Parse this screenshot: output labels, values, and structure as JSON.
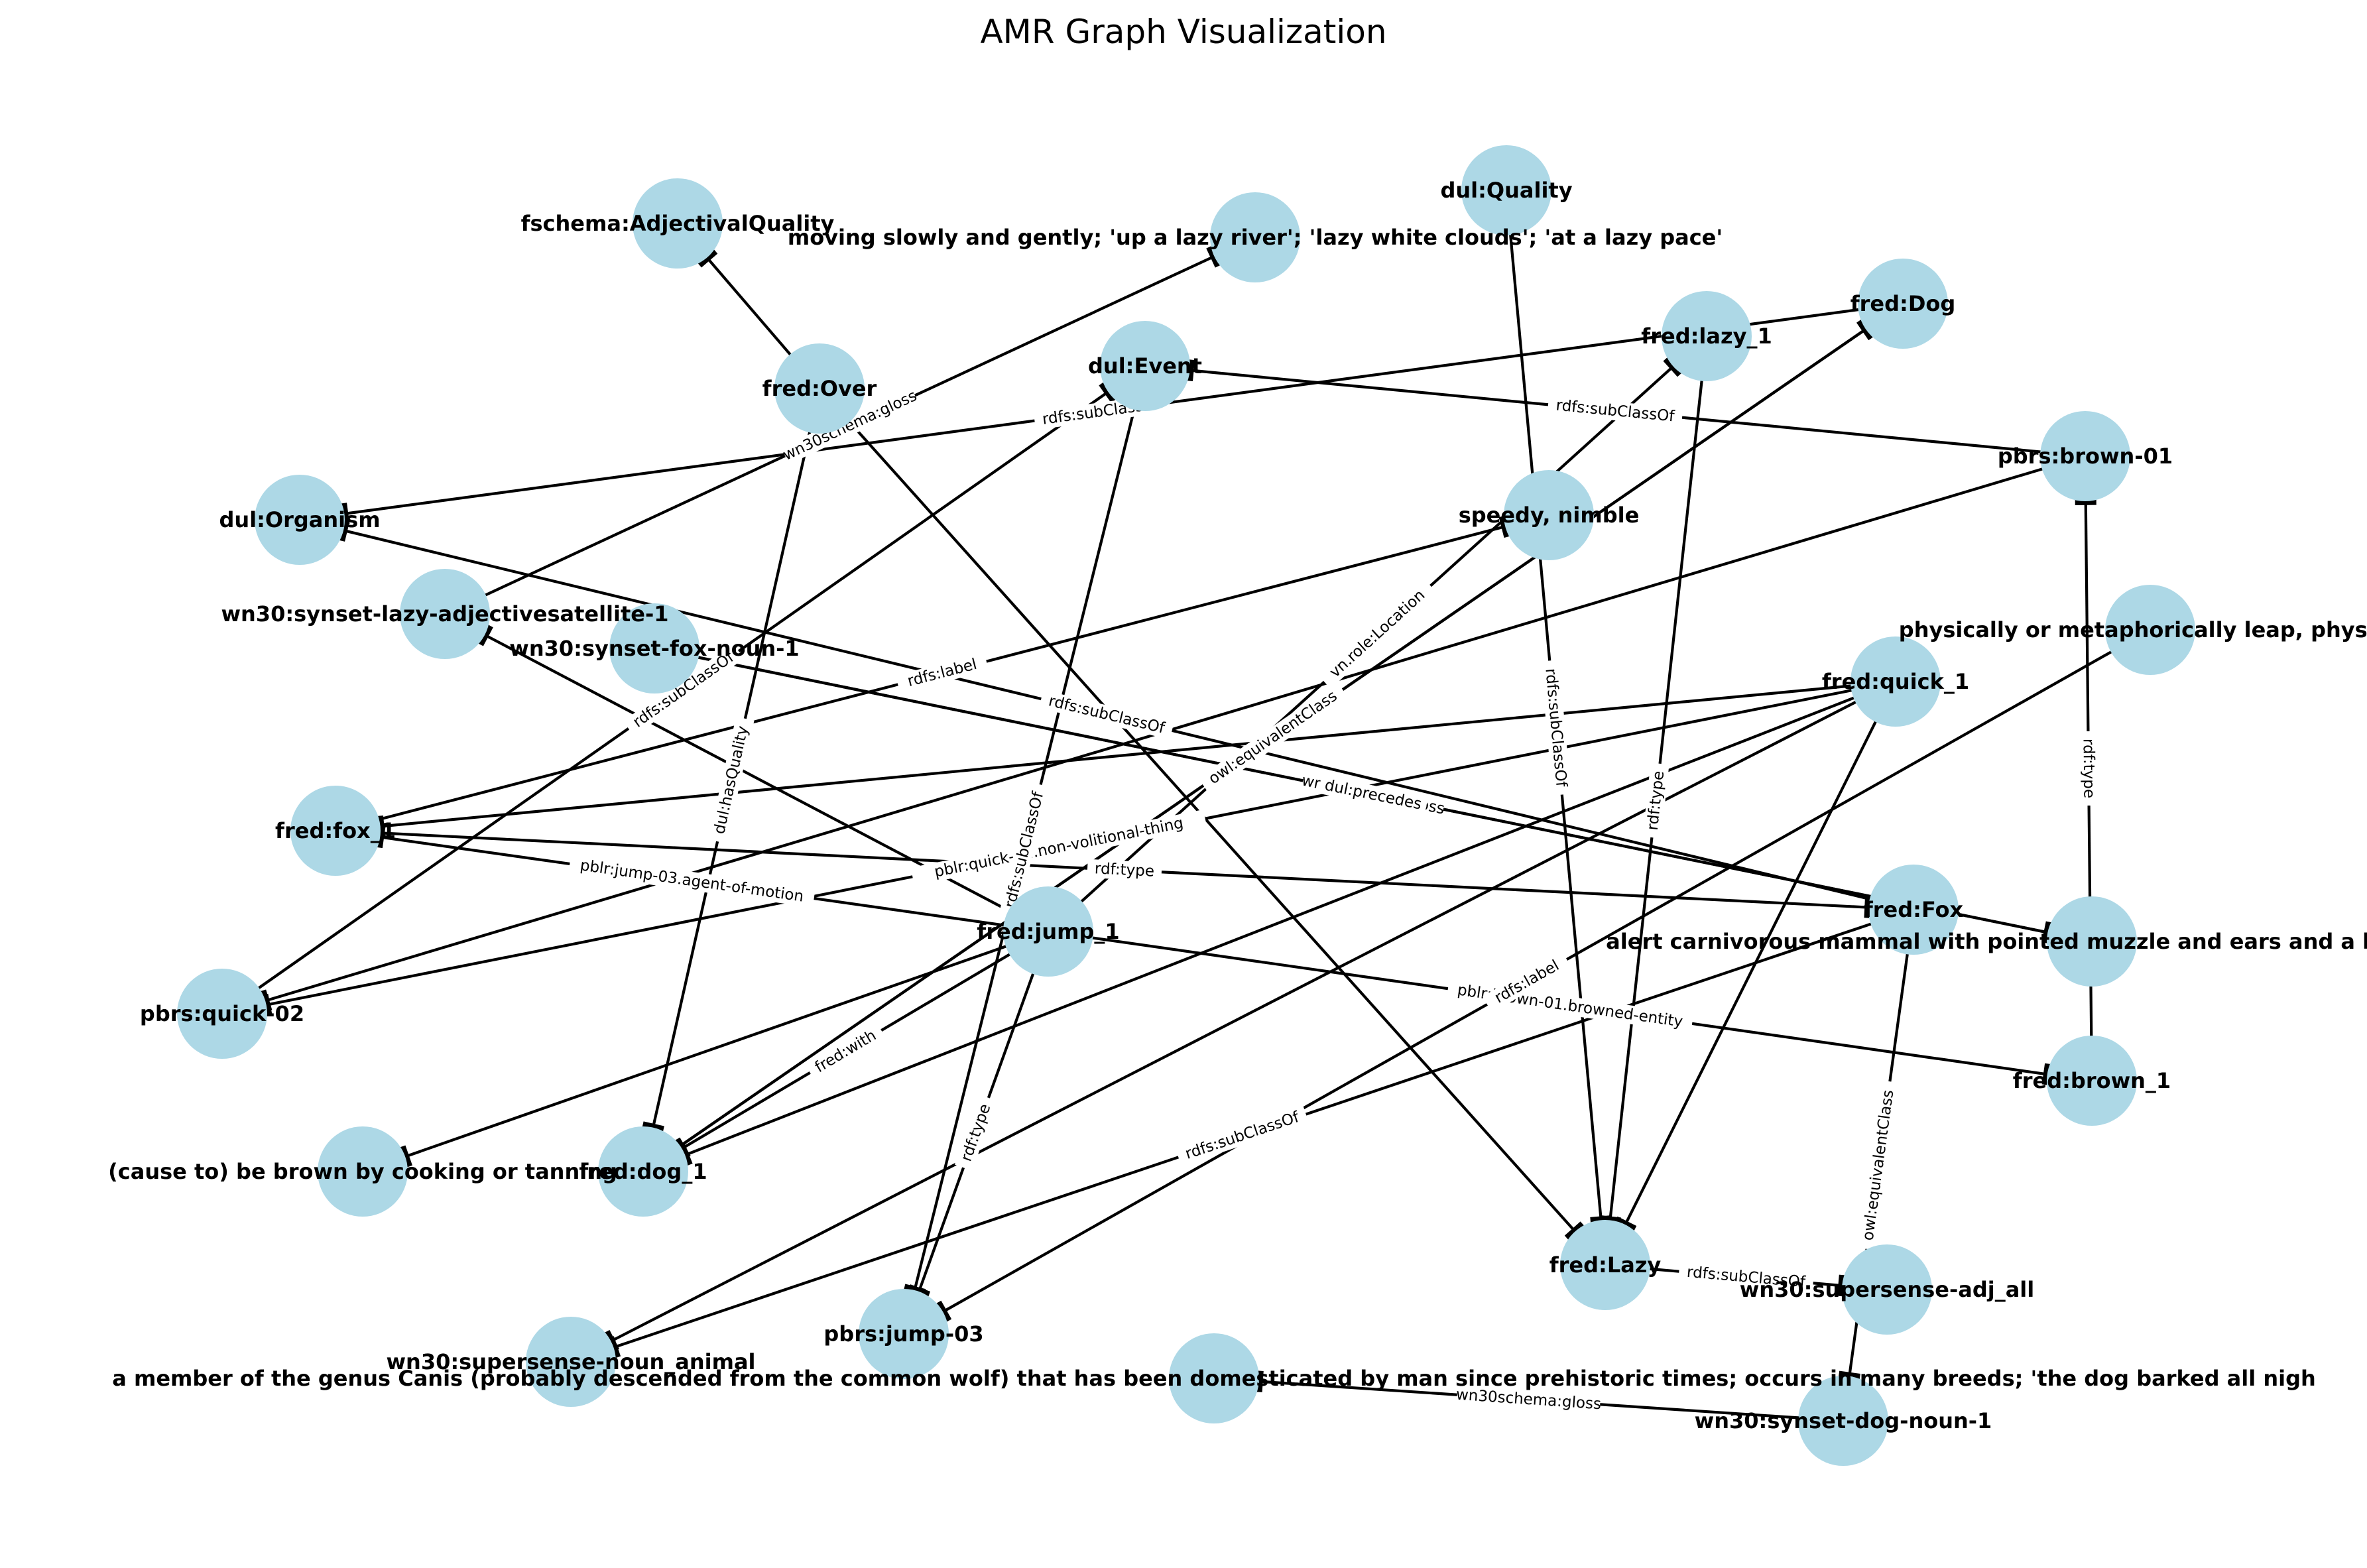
{
  "title": "AMR Graph Visualization",
  "colors": {
    "node_fill": "#add8e6",
    "edge": "#000000",
    "text": "#000000",
    "background": "#ffffff"
  },
  "nodes": [
    {
      "id": "n_fschema_adj",
      "label": "fschema:AdjectivalQuality"
    },
    {
      "id": "n_gloss_lazy",
      "label": "moving slowly and gently; 'up a lazy river'; 'lazy white clouds'; 'at a lazy pace'"
    },
    {
      "id": "n_dul_quality",
      "label": "dul:Quality"
    },
    {
      "id": "n_fred_lazy1",
      "label": "fred:lazy_1"
    },
    {
      "id": "n_fred_dog",
      "label": "fred:Dog"
    },
    {
      "id": "n_fred_over",
      "label": "fred:Over"
    },
    {
      "id": "n_dul_event",
      "label": "dul:Event"
    },
    {
      "id": "n_pbrs_brown01",
      "label": "pbrs:brown-01"
    },
    {
      "id": "n_dul_organism",
      "label": "dul:Organism"
    },
    {
      "id": "n_speedy",
      "label": "speedy, nimble"
    },
    {
      "id": "n_wn_lazy_adj",
      "label": "wn30:synset-lazy-adjectivesatellite-1"
    },
    {
      "id": "n_wn_fox_noun",
      "label": "wn30:synset-fox-noun-1"
    },
    {
      "id": "n_gloss_jump",
      "label": "physically or metaphorically leap, physica"
    },
    {
      "id": "n_fred_quick1",
      "label": "fred:quick_1"
    },
    {
      "id": "n_fred_fox1",
      "label": "fred:fox_1"
    },
    {
      "id": "n_fred_jump1",
      "label": "fred:jump_1"
    },
    {
      "id": "n_fred_fox",
      "label": "fred:Fox"
    },
    {
      "id": "n_gloss_fox",
      "label": "alert carnivorous mammal with pointed muzzle and ears and a bushy tail; most a"
    },
    {
      "id": "n_pbrs_quick02",
      "label": "pbrs:quick-02"
    },
    {
      "id": "n_fred_brown1",
      "label": "fred:brown_1"
    },
    {
      "id": "n_gloss_brown",
      "label": "(cause to) be brown by cooking or tanning"
    },
    {
      "id": "n_fred_dog1",
      "label": "fred:dog_1"
    },
    {
      "id": "n_fred_lazy",
      "label": "fred:Lazy"
    },
    {
      "id": "n_wn_adj_all",
      "label": "wn30:supersense-adj_all"
    },
    {
      "id": "n_wn_noun_animal",
      "label": "wn30:supersense-noun_animal"
    },
    {
      "id": "n_pbrs_jump03",
      "label": "pbrs:jump-03"
    },
    {
      "id": "n_gloss_dog",
      "label": "a member of the genus Canis (probably descended from the common wolf) that has been domesticated by man since prehistoric times; occurs in many breeds; 'the dog barked all nigh"
    },
    {
      "id": "n_wn_dog_noun",
      "label": "wn30:synset-dog-noun-1"
    }
  ],
  "edges": [
    {
      "source": "n_fred_over",
      "target": "n_fschema_adj",
      "label": ""
    },
    {
      "source": "n_wn_lazy_adj",
      "target": "n_gloss_lazy",
      "label": "wn30schema:gloss"
    },
    {
      "source": "n_fred_dog",
      "target": "n_dul_organism",
      "label": "rdfs:subClassOf"
    },
    {
      "source": "n_pbrs_brown01",
      "target": "n_dul_event",
      "label": "rdfs:subClassOf"
    },
    {
      "source": "n_pbrs_quick02",
      "target": "n_dul_event",
      "label": "rdfs:subClassOf"
    },
    {
      "source": "n_fred_fox",
      "target": "n_dul_organism",
      "label": "rdfs:subClassOf"
    },
    {
      "source": "n_fred_over",
      "target": "n_fred_dog1",
      "label": "dul:hasQuality"
    },
    {
      "source": "n_fred_over",
      "target": "n_fred_lazy",
      "label": ""
    },
    {
      "source": "n_fred_quick1",
      "target": "n_fred_fox1",
      "label": ""
    },
    {
      "source": "n_fred_jump1",
      "target": "n_wn_lazy_adj",
      "label": ""
    },
    {
      "source": "n_fred_jump1",
      "target": "n_fred_fox1",
      "label": "pblr:jump-03.agent-of-motion"
    },
    {
      "source": "n_fred_jump1",
      "target": "n_fred_lazy1",
      "label": "vn.role:Location"
    },
    {
      "source": "n_fred_jump1",
      "target": "n_fred_dog1",
      "label": "fred:with"
    },
    {
      "source": "n_fred_jump1",
      "target": "n_pbrs_jump03",
      "label": "rdf:type"
    },
    {
      "source": "n_fred_jump1",
      "target": "n_gloss_brown",
      "label": ""
    },
    {
      "source": "n_fred_jump1",
      "target": "n_fred_brown1",
      "label": "pblr:brown-01.browned-entity"
    },
    {
      "source": "n_fred_fox1",
      "target": "n_speedy",
      "label": "rdfs:label"
    },
    {
      "source": "n_fred_fox1",
      "target": "n_fred_fox",
      "label": "rdf:type"
    },
    {
      "source": "n_fred_quick1",
      "target": "n_pbrs_quick02",
      "label": "pblr:quick-02.non-volitional-thing"
    },
    {
      "source": "n_fred_quick1",
      "target": "n_fred_dog1",
      "label": ""
    },
    {
      "source": "n_fred_quick1",
      "target": "n_fred_lazy",
      "label": ""
    },
    {
      "source": "n_wn_fox_noun",
      "target": "n_gloss_fox",
      "label": "wn30schema:gloss"
    },
    {
      "source": "n_fred_dog1",
      "target": "n_fred_dog",
      "label": "rdf:type"
    },
    {
      "source": "n_fred_dog1",
      "target": "n_fred_dog",
      "label": "owl:equivalentClass"
    },
    {
      "source": "n_dul_event",
      "target": "n_pbrs_jump03",
      "label": "rdfs:subClassOf"
    },
    {
      "source": "n_dul_quality",
      "target": "n_fred_lazy",
      "label": "rdfs:subClassOf"
    },
    {
      "source": "n_fred_lazy1",
      "target": "n_fred_lazy",
      "label": "rdf:type"
    },
    {
      "source": "n_pbrs_brown01",
      "target": "n_pbrs_quick02",
      "label": ""
    },
    {
      "source": "n_fred_brown1",
      "target": "n_pbrs_brown01",
      "label": "rdf:type"
    },
    {
      "source": "n_gloss_jump",
      "target": "n_pbrs_jump03",
      "label": "rdfs:label"
    },
    {
      "source": "n_fred_fox",
      "target": "n_wn_noun_animal",
      "label": "rdfs:subClassOf"
    },
    {
      "source": "n_fred_fox",
      "target": "n_wn_dog_noun",
      "label": "owl:equivalentClass"
    },
    {
      "source": "n_fred_lazy",
      "target": "n_wn_adj_all",
      "label": "rdfs:subClassOf"
    },
    {
      "source": "n_wn_dog_noun",
      "target": "n_gloss_dog",
      "label": "wn30schema:gloss"
    },
    {
      "source": "n_wn_fox_noun",
      "target": "n_gloss_fox",
      "label": "dul:precedes"
    },
    {
      "source": "n_fred_quick1",
      "target": "n_wn_noun_animal",
      "label": ""
    }
  ],
  "extra_edge_labels": [
    "rdfs:subClassOf",
    "rdfs:subClassOf",
    "rdfs:label",
    "rdf:type",
    "dul:precedes",
    "owl:equ",
    "rdfs:subClassOf",
    "speedy"
  ]
}
